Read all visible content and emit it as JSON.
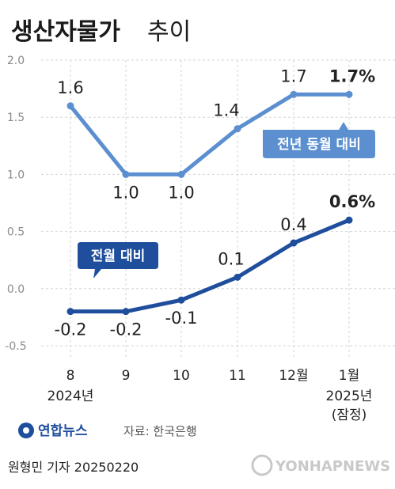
{
  "title": {
    "bold": "생산자물가",
    "light": "추이"
  },
  "chart_data": {
    "type": "line",
    "categories": [
      "8",
      "9",
      "10",
      "11",
      "12월",
      "1월"
    ],
    "category_sublabels": [
      "2024년",
      "",
      "",
      "",
      "",
      "2025년"
    ],
    "category_note": [
      "",
      "",
      "",
      "",
      "",
      "(잠정)"
    ],
    "ylim": [
      -0.5,
      2.0
    ],
    "yticks": [
      "2.0",
      "1.5",
      "1.0",
      "0.5",
      "0.0",
      "-0.5"
    ],
    "grid": true,
    "series": [
      {
        "name": "전년 동월 대비",
        "color": "#5b8fcf",
        "values": [
          1.6,
          1.0,
          1.0,
          1.4,
          1.7,
          1.7
        ],
        "labels": [
          "1.6",
          "1.0",
          "1.0",
          "1.4",
          "1.7",
          "1.7%"
        ]
      },
      {
        "name": "전월 대비",
        "color": "#1f4e9c",
        "values": [
          -0.2,
          -0.2,
          -0.1,
          0.1,
          0.4,
          0.6
        ],
        "labels": [
          "-0.2",
          "-0.2",
          "-0.1",
          "0.1",
          "0.4",
          "0.6%"
        ]
      }
    ]
  },
  "logo": {
    "text": "연합뉴스"
  },
  "source": "자료: 한국은행",
  "byline": "원형민 기자  20250220",
  "watermark": "YONHAPNEWS"
}
